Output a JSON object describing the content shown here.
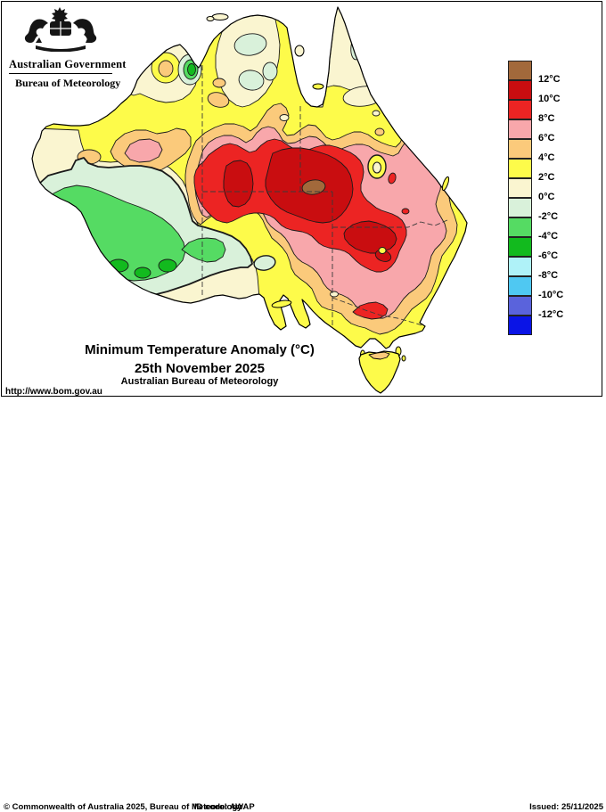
{
  "header": {
    "government": "Australian Government",
    "bureau": "Bureau of Meteorology"
  },
  "titles": {
    "main": "Minimum Temperature Anomaly (°C)",
    "date": "25th November 2025",
    "org": "Australian Bureau of Meteorology"
  },
  "legend": {
    "labels": [
      "12°C",
      "10°C",
      "8°C",
      "6°C",
      "4°C",
      "2°C",
      "0°C",
      "-2°C",
      "-4°C",
      "-6°C",
      "-8°C",
      "-10°C",
      "-12°C"
    ],
    "box_colors": [
      "brown",
      "darkred",
      "red",
      "pink",
      "orange",
      "yellow",
      "cream",
      "palegreen",
      "lightgreen",
      "green",
      "cyanlight",
      "cyan",
      "violet",
      "blue"
    ]
  },
  "footer": {
    "url": "http://www.bom.gov.au",
    "copyright": "© Commonwealth of Australia 2025, Bureau of Meteorology",
    "id_code": "ID code: AWAP",
    "issued": "Issued: 25/11/2025"
  },
  "map": {
    "palette": {
      "brown": "#A2693B",
      "darkred": "#C90D10",
      "red": "#EC2423",
      "pink": "#F8A7AB",
      "orange": "#FBCA7B",
      "yellow": "#FDFB4A",
      "cream": "#FAF5D0",
      "palegreen": "#D9F1DA",
      "lightgreen": "#55DB63",
      "green": "#12BA1E",
      "cyanlight": "#AFF2F8",
      "cyan": "#4FC8F2",
      "violet": "#5A63DC",
      "blue": "#0A14E6",
      "sea": "#FFFFFF",
      "contour": "#1A1A1A"
    },
    "summary": {
      "variable": "Minimum temperature anomaly (°C)",
      "region": "Australia",
      "warmest_anomaly": "above +12°C in central Australia (brown core)",
      "secondary_warm_core": "+10 to +12°C in inland New South Wales",
      "coolest_anomaly": "-4 to -6°C in southwest Western Australia",
      "tasmania": "+2 to +4°C with +4 to +6°C on the central north coast"
    }
  }
}
